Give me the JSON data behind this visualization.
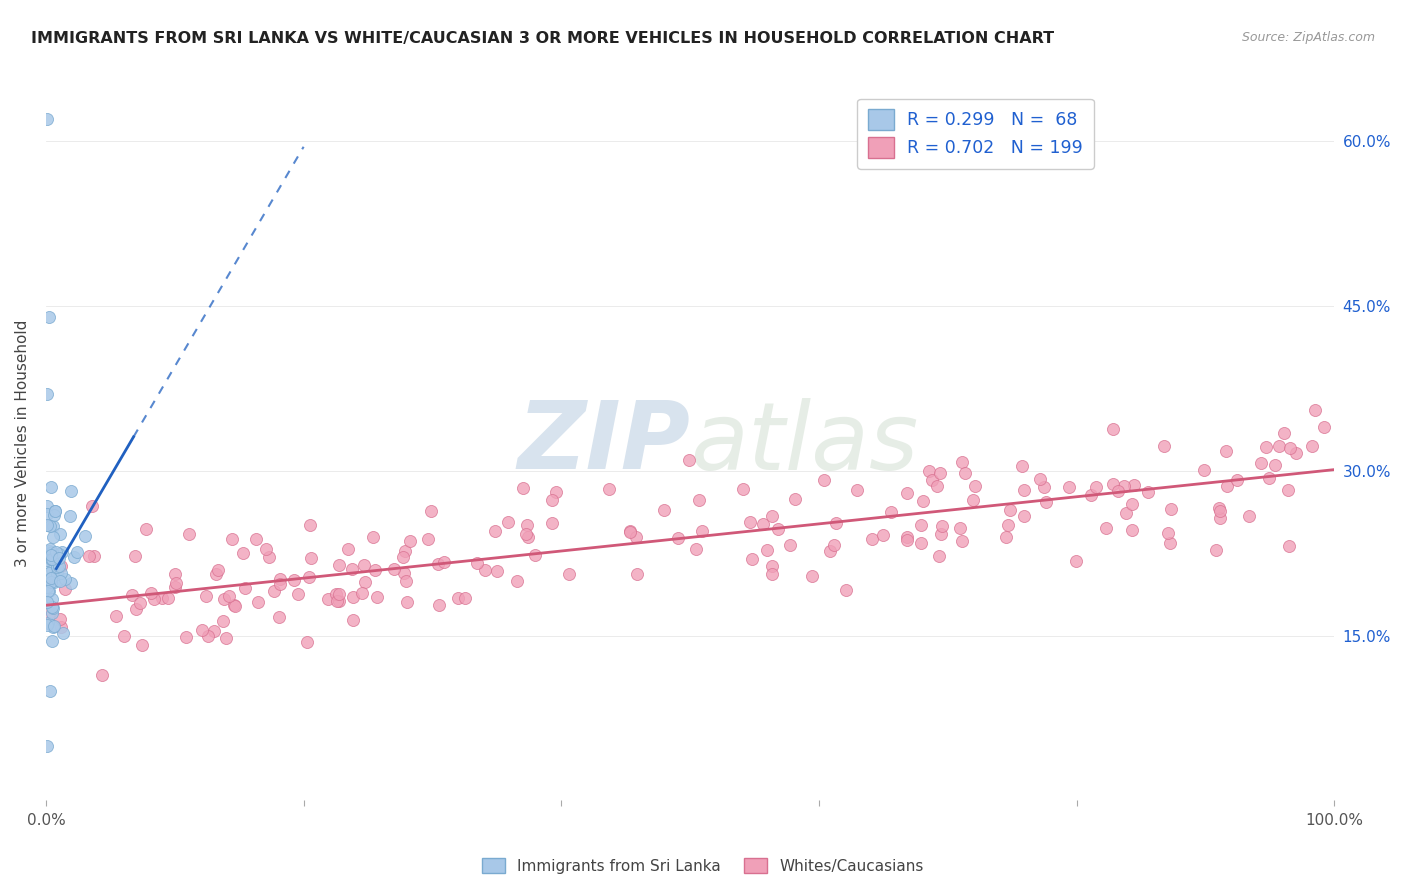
{
  "title": "IMMIGRANTS FROM SRI LANKA VS WHITE/CAUCASIAN 3 OR MORE VEHICLES IN HOUSEHOLD CORRELATION CHART",
  "source": "Source: ZipAtlas.com",
  "ylabel": "3 or more Vehicles in Household",
  "xlim": [
    0,
    1.0
  ],
  "ylim": [
    0,
    0.65
  ],
  "sri_lanka_R": 0.299,
  "sri_lanka_N": 68,
  "white_R": 0.702,
  "white_N": 199,
  "legend_label_1": "Immigrants from Sri Lanka",
  "legend_label_2": "Whites/Caucasians",
  "watermark_zip": "ZIP",
  "watermark_atlas": "atlas",
  "scatter_color_blue": "#a8c8e8",
  "scatter_edge_blue": "#7aaad0",
  "scatter_color_pink": "#f0a0b8",
  "scatter_edge_pink": "#d87090",
  "line_color_blue": "#2060c0",
  "line_color_pink": "#d05878",
  "legend_text_color": "#2060d0",
  "background_color": "#ffffff",
  "grid_color": "#e8e8e8",
  "title_color": "#222222",
  "source_color": "#999999",
  "tick_label_color_right": "#2060d0",
  "tick_label_color_bottom": "#555555"
}
